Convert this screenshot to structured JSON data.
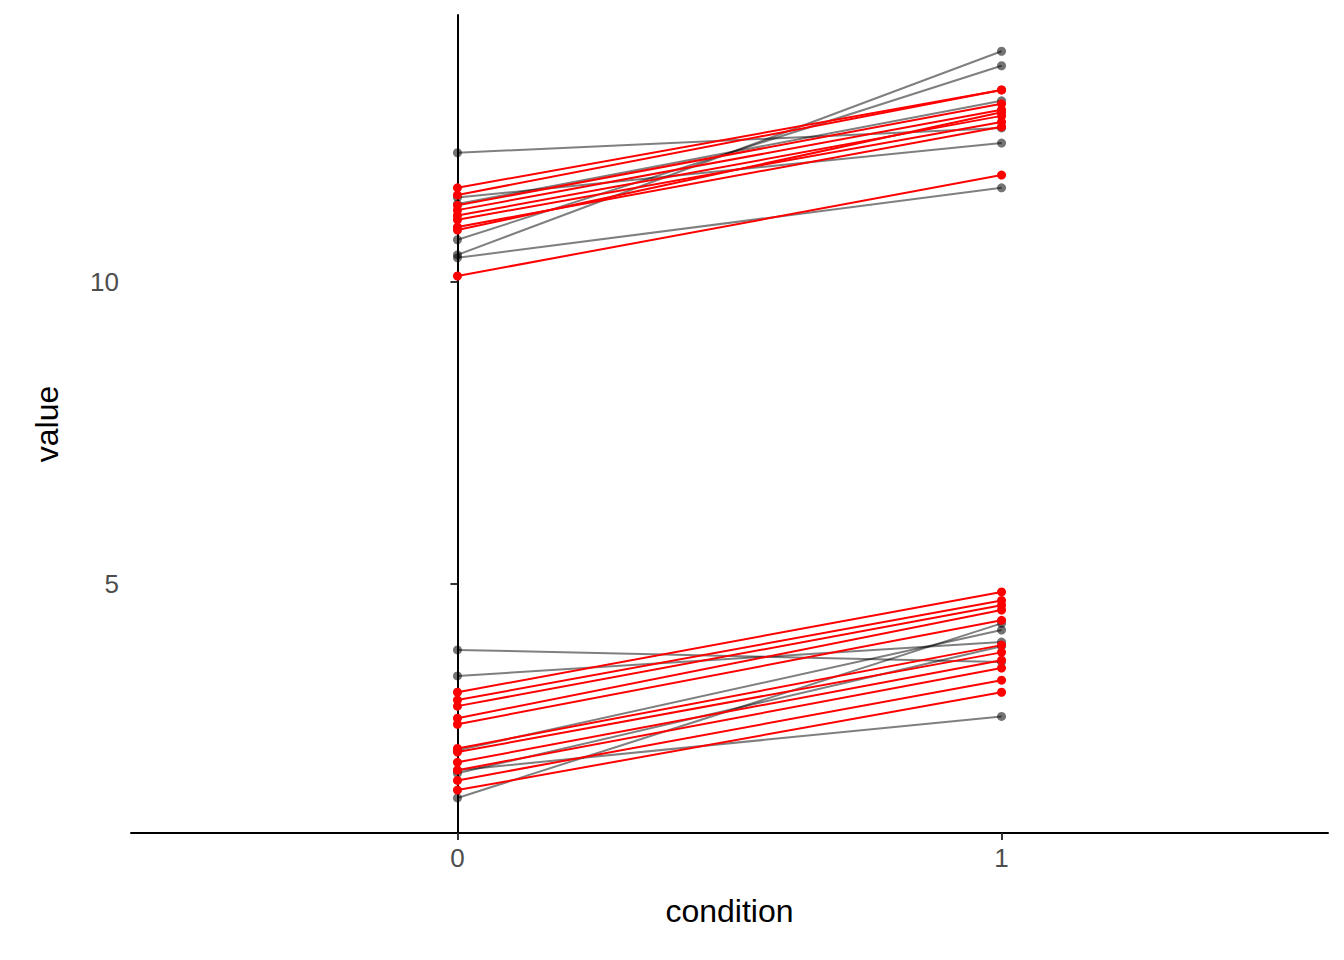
{
  "chart_data": {
    "type": "line",
    "x_label": "condition",
    "y_label": "value",
    "x": [
      0,
      1
    ],
    "xlim": [
      -0.6,
      1.6
    ],
    "xticks": [
      0,
      1
    ],
    "ylim": [
      0.88,
      14.42
    ],
    "yticks": [
      5,
      10
    ],
    "grid": false,
    "series": [
      {
        "color": "#000000",
        "marker": "circle",
        "values": [
          [
            12.14,
            12.55
          ],
          [
            10.45,
            13.82
          ],
          [
            10.7,
            13.58
          ],
          [
            10.4,
            11.56
          ],
          [
            11.4,
            12.3
          ],
          [
            11.29,
            13.0
          ],
          [
            3.91,
            3.71
          ],
          [
            3.48,
            4.04
          ],
          [
            1.87,
            3.97
          ],
          [
            1.46,
            4.35
          ],
          [
            1.92,
            2.81
          ],
          [
            2.25,
            4.24
          ]
        ]
      },
      {
        "color": "#ff0000",
        "marker": "circle",
        "values": [
          [
            11.56,
            13.18
          ],
          [
            11.44,
            13.18
          ],
          [
            11.27,
            12.95
          ],
          [
            11.19,
            12.85
          ],
          [
            11.1,
            12.75
          ],
          [
            11.03,
            12.65
          ],
          [
            10.91,
            12.57
          ],
          [
            10.1,
            11.77
          ],
          [
            10.86,
            12.81
          ],
          [
            3.21,
            4.87
          ],
          [
            3.08,
            4.73
          ],
          [
            2.98,
            4.65
          ],
          [
            2.78,
            4.57
          ],
          [
            2.68,
            4.4
          ],
          [
            2.28,
            3.99
          ],
          [
            2.22,
            3.87
          ],
          [
            2.05,
            3.74
          ],
          [
            1.92,
            3.61
          ],
          [
            1.75,
            3.41
          ],
          [
            1.59,
            3.21
          ]
        ]
      }
    ]
  }
}
